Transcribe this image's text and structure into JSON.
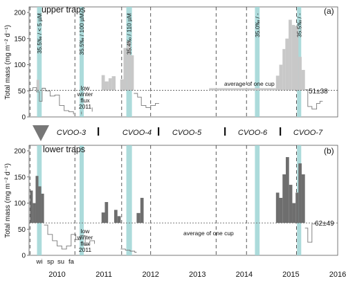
{
  "chart_data": [
    {
      "type": "bar",
      "panel_label": "(a)",
      "title": "upper traps",
      "ylabel": "Total mass (mg m⁻² d⁻¹)",
      "ylim": [
        0,
        200
      ],
      "yticks": [
        0,
        50,
        100,
        150,
        200
      ],
      "average": 51,
      "average_label": "51±38",
      "average_of_one_cup_label": "average of one cup",
      "low_winter_flux_label": [
        "low",
        "winter",
        "flux",
        "2011"
      ],
      "bar_color": "#c8c8c8",
      "bars": [
        {
          "x": [
            2010.06,
            2010.12
          ],
          "value": 71
        },
        {
          "x": [
            2011.45,
            2011.52
          ],
          "value": 80
        },
        {
          "x": [
            2011.52,
            2011.6
          ],
          "value": 68
        },
        {
          "x": [
            2011.6,
            2011.67
          ],
          "value": 74
        },
        {
          "x": [
            2011.67,
            2011.75
          ],
          "value": 78
        },
        {
          "x": [
            2011.85,
            2011.92
          ],
          "value": 72
        },
        {
          "x": [
            2011.92,
            2011.99
          ],
          "value": 132
        },
        {
          "x": [
            2011.99,
            2012.07
          ],
          "value": 145
        },
        {
          "x": [
            2012.07,
            2012.14
          ],
          "value": 118
        },
        {
          "x": [
            2015.18,
            2015.25
          ],
          "value": 79
        },
        {
          "x": [
            2015.25,
            2015.32
          ],
          "value": 100
        },
        {
          "x": [
            2015.32,
            2015.38
          ],
          "value": 130
        },
        {
          "x": [
            2015.38,
            2015.45
          ],
          "value": 150
        },
        {
          "x": [
            2015.45,
            2015.52
          ],
          "value": 186
        },
        {
          "x": [
            2015.52,
            2015.59
          ],
          "value": 176
        },
        {
          "x": [
            2015.59,
            2015.66
          ],
          "value": 174
        },
        {
          "x": [
            2015.66,
            2015.73
          ],
          "value": 115
        },
        {
          "x": [
            2015.73,
            2015.8
          ],
          "value": 90
        }
      ],
      "step_line": [
        [
          2009.92,
          51
        ],
        [
          2009.98,
          51
        ],
        [
          2009.98,
          56
        ],
        [
          2010.06,
          56
        ],
        [
          2010.06,
          48
        ],
        [
          2010.12,
          48
        ],
        [
          2010.12,
          30
        ],
        [
          2010.18,
          30
        ],
        [
          2010.18,
          55
        ],
        [
          2010.25,
          55
        ],
        [
          2010.25,
          50
        ],
        [
          2010.35,
          50
        ],
        [
          2010.35,
          40
        ],
        [
          2010.45,
          40
        ],
        [
          2010.45,
          42
        ],
        [
          2010.55,
          42
        ],
        [
          2010.55,
          22
        ],
        [
          2010.65,
          22
        ],
        [
          2010.65,
          12
        ],
        [
          2010.75,
          12
        ],
        [
          2010.75,
          10
        ],
        [
          2010.85,
          10
        ],
        [
          2010.85,
          5
        ],
        [
          2011.02,
          5
        ],
        [
          2011.02,
          10
        ],
        [
          2011.25,
          10
        ],
        [
          2011.25,
          18
        ],
        [
          2011.45,
          18
        ],
        [
          2012.14,
          45
        ],
        [
          2012.22,
          45
        ],
        [
          2012.22,
          38
        ],
        [
          2012.3,
          38
        ],
        [
          2012.3,
          22
        ],
        [
          2012.4,
          22
        ],
        [
          2012.4,
          18
        ],
        [
          2012.5,
          18
        ],
        [
          2012.5,
          22
        ],
        [
          2012.6,
          22
        ],
        [
          2012.6,
          26
        ],
        [
          2012.68,
          26
        ],
        [
          2015.8,
          52
        ],
        [
          2015.86,
          52
        ],
        [
          2015.86,
          20
        ],
        [
          2015.95,
          20
        ],
        [
          2015.95,
          15
        ],
        [
          2016.05,
          15
        ],
        [
          2016.05,
          26
        ],
        [
          2016.12,
          26
        ],
        [
          2016.12,
          30
        ],
        [
          2016.18,
          30
        ]
      ],
      "average_of_one_cup_bar": {
        "x": [
          2013.75,
          2015.18
        ],
        "value": 55
      },
      "highlights": [
        {
          "x": [
            2010.07,
            2010.17
          ],
          "label": "35.5‰ / < 5 µM"
        },
        {
          "x": [
            2010.98,
            2011.07
          ],
          "label": "35.5‰ / 100 µM"
        },
        {
          "x": [
            2011.98,
            2012.1
          ],
          "label": "35.4‰ / 110 µM"
        },
        {
          "x": [
            2014.73,
            2014.83
          ],
          "label": "35.0‰ / -"
        },
        {
          "x": [
            2015.63,
            2015.72
          ],
          "label": "35.5‰ / -"
        }
      ]
    },
    {
      "type": "bar",
      "panel_label": "(b)",
      "title": "lower traps",
      "ylabel": "Total mass (mg m⁻² d⁻¹)",
      "ylim": [
        0,
        200
      ],
      "yticks": [
        0,
        50,
        100,
        150,
        200
      ],
      "average": 62,
      "average_label": "62±49",
      "average_of_one_cup_label": "average of one cup",
      "low_winter_flux_label": [
        "low",
        "winter",
        "flux",
        "2011"
      ],
      "bar_color": "#6e6e6e",
      "bars": [
        {
          "x": [
            2009.92,
            2009.98
          ],
          "value": 124
        },
        {
          "x": [
            2009.98,
            2010.04
          ],
          "value": 100
        },
        {
          "x": [
            2010.04,
            2010.1
          ],
          "value": 152
        },
        {
          "x": [
            2010.1,
            2010.16
          ],
          "value": 132
        },
        {
          "x": [
            2010.16,
            2010.22
          ],
          "value": 118
        },
        {
          "x": [
            2011.45,
            2011.52
          ],
          "value": 82
        },
        {
          "x": [
            2011.52,
            2011.59
          ],
          "value": 102
        },
        {
          "x": [
            2011.72,
            2011.79
          ],
          "value": 87
        },
        {
          "x": [
            2011.79,
            2011.86
          ],
          "value": 75
        },
        {
          "x": [
            2012.2,
            2012.28
          ],
          "value": 81
        },
        {
          "x": [
            2012.28,
            2012.35
          ],
          "value": 110
        },
        {
          "x": [
            2015.18,
            2015.25
          ],
          "value": 120
        },
        {
          "x": [
            2015.25,
            2015.32
          ],
          "value": 110
        },
        {
          "x": [
            2015.32,
            2015.39
          ],
          "value": 155
        },
        {
          "x": [
            2015.39,
            2015.46
          ],
          "value": 188
        },
        {
          "x": [
            2015.46,
            2015.53
          ],
          "value": 135
        },
        {
          "x": [
            2015.53,
            2015.6
          ],
          "value": 100
        },
        {
          "x": [
            2015.6,
            2015.66
          ],
          "value": 120
        },
        {
          "x": [
            2015.66,
            2015.73
          ],
          "value": 176
        },
        {
          "x": [
            2015.73,
            2015.8
          ],
          "value": 155
        }
      ],
      "step_line": [
        [
          2010.22,
          58
        ],
        [
          2010.3,
          58
        ],
        [
          2010.3,
          40
        ],
        [
          2010.4,
          40
        ],
        [
          2010.4,
          28
        ],
        [
          2010.5,
          28
        ],
        [
          2010.5,
          18
        ],
        [
          2010.6,
          18
        ],
        [
          2010.6,
          12
        ],
        [
          2010.7,
          12
        ],
        [
          2010.7,
          18
        ],
        [
          2010.8,
          18
        ],
        [
          2010.8,
          40
        ],
        [
          2010.9,
          40
        ],
        [
          2010.9,
          30
        ],
        [
          2011.0,
          30
        ],
        [
          2011.0,
          38
        ],
        [
          2011.1,
          38
        ],
        [
          2011.1,
          20
        ],
        [
          2011.2,
          20
        ],
        [
          2011.2,
          28
        ],
        [
          2011.3,
          28
        ],
        [
          2011.3,
          22
        ],
        [
          2011.45,
          22
        ],
        [
          2011.86,
          12
        ],
        [
          2011.96,
          12
        ],
        [
          2011.96,
          10
        ],
        [
          2012.06,
          10
        ],
        [
          2012.06,
          8
        ],
        [
          2012.16,
          8
        ],
        [
          2012.16,
          6
        ],
        [
          2012.2,
          6
        ],
        [
          2015.8,
          52
        ],
        [
          2015.86,
          52
        ],
        [
          2015.86,
          25
        ],
        [
          2015.95,
          25
        ],
        [
          2015.95,
          60
        ],
        [
          2016.02,
          60
        ]
      ],
      "highlights": [
        {
          "x": [
            2010.07,
            2010.17
          ]
        },
        {
          "x": [
            2010.98,
            2011.07
          ]
        },
        {
          "x": [
            2011.98,
            2012.1
          ]
        },
        {
          "x": [
            2014.73,
            2014.83
          ]
        },
        {
          "x": [
            2015.63,
            2015.72
          ]
        }
      ]
    }
  ],
  "shared": {
    "vlines_dashed": [
      2009.92,
      2010.88,
      2011.88,
      2012.5,
      2013.9,
      2014.55,
      2015.62
    ],
    "deployments": [
      {
        "label": "CVOO-3",
        "sep_before": false
      },
      {
        "label": "CVOO-4",
        "sep_before": true
      },
      {
        "label": "CVOO-5",
        "sep_before": true
      },
      {
        "label": "CVOO-6",
        "sep_before": true
      },
      {
        "label": "CVOO-7",
        "sep_before": true
      }
    ],
    "years": [
      "2010",
      "2011",
      "2012",
      "2013",
      "2014",
      "2015",
      "2016"
    ],
    "seasons": [
      "wi",
      "sp",
      "su",
      "fa"
    ],
    "highlight_color": "#9ed5d5"
  }
}
